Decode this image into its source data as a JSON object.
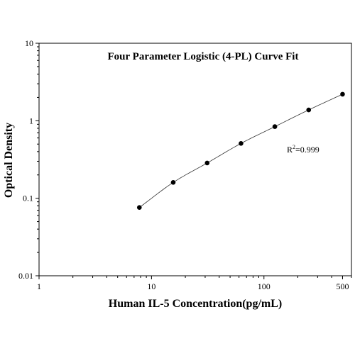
{
  "chart_data": {
    "type": "scatter",
    "title": "Four Parameter Logistic (4-PL) Curve Fit",
    "xlabel": "Human IL-5 Concentration(pg/mL)",
    "ylabel": "Optical Density",
    "x_scale": "log",
    "y_scale": "log",
    "xlim": [
      1,
      600
    ],
    "ylim": [
      0.01,
      10
    ],
    "x_ticks": [
      {
        "value": 1,
        "label": "1"
      },
      {
        "value": 10,
        "label": "10"
      },
      {
        "value": 100,
        "label": "100"
      },
      {
        "value": 500,
        "label": "500"
      }
    ],
    "y_ticks": [
      {
        "value": 0.01,
        "label": "0.01"
      },
      {
        "value": 0.1,
        "label": "0.1"
      },
      {
        "value": 1,
        "label": "1"
      },
      {
        "value": 10,
        "label": "10"
      }
    ],
    "grid": false,
    "legend": "none",
    "series": [
      {
        "x": [
          7.8,
          15.6,
          31.25,
          62.5,
          125,
          250,
          500
        ],
        "y": [
          0.076,
          0.16,
          0.285,
          0.51,
          0.84,
          1.38,
          2.2
        ],
        "marker": "circle",
        "color": "#000000",
        "fit_curve": "4-PL"
      }
    ],
    "annotation": {
      "base": "R",
      "superscript": "2",
      "value": "=0.999"
    }
  }
}
